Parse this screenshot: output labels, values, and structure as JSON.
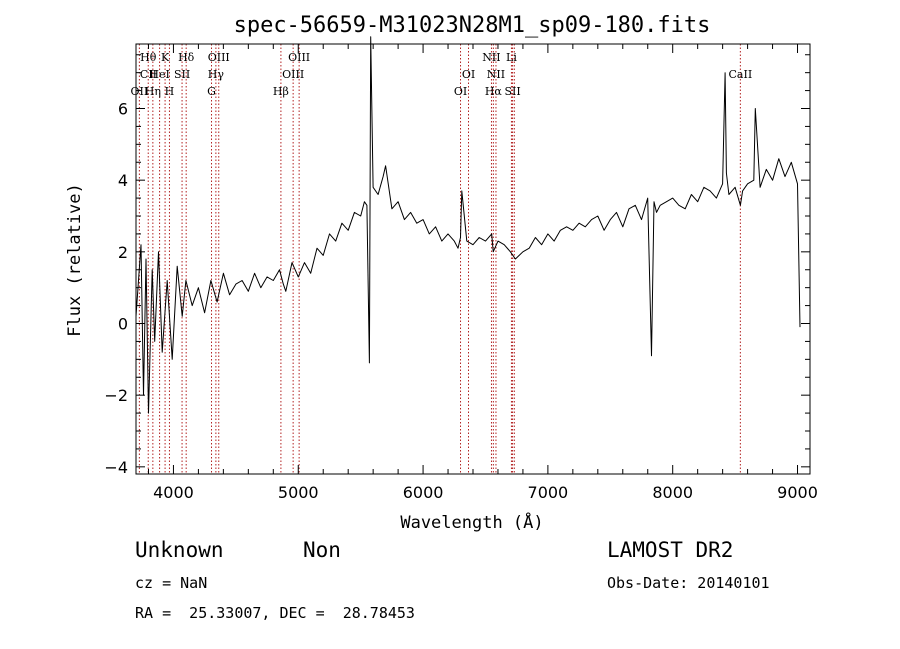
{
  "chart_data": {
    "type": "line",
    "title": "spec-56659-M31023N28M1_sp09-180.fits",
    "xlabel": "Wavelength (Å)",
    "ylabel": "Flux (relative)",
    "xlim": [
      3700,
      9100
    ],
    "ylim": [
      -4.2,
      7.8
    ],
    "xticks": [
      4000,
      5000,
      6000,
      7000,
      8000,
      9000
    ],
    "yticks": [
      -4,
      -2,
      0,
      2,
      4,
      6
    ],
    "grid": false,
    "series": [
      {
        "x": [
          3700,
          3740,
          3760,
          3780,
          3800,
          3830,
          3850,
          3880,
          3910,
          3950,
          3990,
          4030,
          4070,
          4100,
          4150,
          4200,
          4250,
          4300,
          4350,
          4400,
          4450,
          4500,
          4550,
          4600,
          4650,
          4700,
          4750,
          4800,
          4850,
          4880,
          4900,
          4950,
          5000,
          5050,
          5100,
          5150,
          5200,
          5250,
          5300,
          5350,
          5400,
          5450,
          5500,
          5530,
          5550,
          5570,
          5580,
          5600,
          5640,
          5680,
          5700,
          5750,
          5800,
          5850,
          5900,
          5950,
          6000,
          6050,
          6100,
          6150,
          6200,
          6250,
          6280,
          6300,
          6310,
          6350,
          6400,
          6450,
          6500,
          6550,
          6562,
          6600,
          6650,
          6700,
          6740,
          6800,
          6850,
          6900,
          6950,
          7000,
          7050,
          7100,
          7150,
          7200,
          7250,
          7300,
          7350,
          7400,
          7450,
          7500,
          7550,
          7600,
          7650,
          7700,
          7750,
          7800,
          7830,
          7850,
          7870,
          7900,
          7950,
          8000,
          8050,
          8100,
          8150,
          8200,
          8250,
          8300,
          8350,
          8400,
          8420,
          8430,
          8450,
          8500,
          8542,
          8560,
          8600,
          8650,
          8662,
          8700,
          8750,
          8800,
          8850,
          8900,
          8950,
          9000,
          9020
        ],
        "y": [
          0.2,
          2.2,
          -2.0,
          1.8,
          -2.5,
          1.5,
          -0.5,
          2.0,
          -0.8,
          1.2,
          -1.0,
          1.6,
          0.2,
          1.2,
          0.5,
          1.0,
          0.3,
          1.2,
          0.6,
          1.4,
          0.8,
          1.1,
          1.2,
          0.9,
          1.4,
          1.0,
          1.3,
          1.2,
          1.5,
          1.1,
          0.9,
          1.7,
          1.3,
          1.7,
          1.4,
          2.1,
          1.9,
          2.5,
          2.3,
          2.8,
          2.6,
          3.1,
          3.0,
          3.4,
          3.3,
          -1.1,
          8.0,
          3.8,
          3.6,
          4.1,
          4.4,
          3.2,
          3.4,
          2.9,
          3.1,
          2.8,
          2.9,
          2.5,
          2.7,
          2.3,
          2.5,
          2.3,
          2.1,
          2.4,
          3.7,
          2.3,
          2.2,
          2.4,
          2.3,
          2.5,
          2.0,
          2.3,
          2.2,
          2.0,
          1.8,
          2.0,
          2.1,
          2.4,
          2.2,
          2.5,
          2.3,
          2.6,
          2.7,
          2.6,
          2.8,
          2.7,
          2.9,
          3.0,
          2.6,
          2.9,
          3.1,
          2.7,
          3.2,
          3.3,
          2.9,
          3.5,
          -0.9,
          3.4,
          3.1,
          3.3,
          3.4,
          3.5,
          3.3,
          3.2,
          3.6,
          3.4,
          3.8,
          3.7,
          3.5,
          3.9,
          7.0,
          4.2,
          3.6,
          3.8,
          3.3,
          3.7,
          3.9,
          4.0,
          6.0,
          3.8,
          4.3,
          4.0,
          4.6,
          4.1,
          4.5,
          3.9,
          -0.1
        ]
      }
    ],
    "annotations": [
      {
        "label": "Hθ",
        "x": 3798,
        "row": 1
      },
      {
        "label": "CII",
        "x": 3800,
        "row": 2
      },
      {
        "label": "OII",
        "x": 3727,
        "row": 3
      },
      {
        "label": "K",
        "x": 3933,
        "row": 1
      },
      {
        "label": "HeI",
        "x": 3889,
        "row": 2
      },
      {
        "label": "Hη",
        "x": 3835,
        "row": 3
      },
      {
        "label": "H",
        "x": 3968,
        "row": 3
      },
      {
        "label": "SII",
        "x": 4069,
        "row": 2
      },
      {
        "label": "Hδ",
        "x": 4102,
        "row": 1
      },
      {
        "label": "OIII",
        "x": 4363,
        "row": 1
      },
      {
        "label": "Hγ",
        "x": 4340,
        "row": 2
      },
      {
        "label": "G",
        "x": 4305,
        "row": 3
      },
      {
        "label": "OIII",
        "x": 5007,
        "row": 1
      },
      {
        "label": "OIII",
        "x": 4959,
        "row": 2
      },
      {
        "label": "Hβ",
        "x": 4861,
        "row": 3
      },
      {
        "label": "OI",
        "x": 6364,
        "row": 2
      },
      {
        "label": "OI",
        "x": 6300,
        "row": 3
      },
      {
        "label": "NII",
        "x": 6548,
        "row": 1
      },
      {
        "label": "NII",
        "x": 6584,
        "row": 2
      },
      {
        "label": "Hα",
        "x": 6563,
        "row": 3
      },
      {
        "label": "Li",
        "x": 6708,
        "row": 1
      },
      {
        "label": "SII",
        "x": 6717,
        "row": 3
      },
      {
        "label": "CaII",
        "x": 8542,
        "row": 2
      }
    ],
    "annotation_lines": [
      3727,
      3798,
      3835,
      3889,
      3933,
      3968,
      4069,
      4102,
      4305,
      4340,
      4363,
      4861,
      4959,
      5007,
      6300,
      6364,
      6548,
      6563,
      6584,
      6708,
      6717,
      6731,
      8542
    ],
    "line_color": "#000000",
    "marker_color": "#b22222"
  },
  "info": {
    "class": "Unknown",
    "subclass": "Non",
    "cz": "cz = NaN",
    "radec": "RA =  25.33007, DEC =  28.78453",
    "survey": "LAMOST DR2",
    "obsdate": "Obs-Date: 20140101"
  }
}
